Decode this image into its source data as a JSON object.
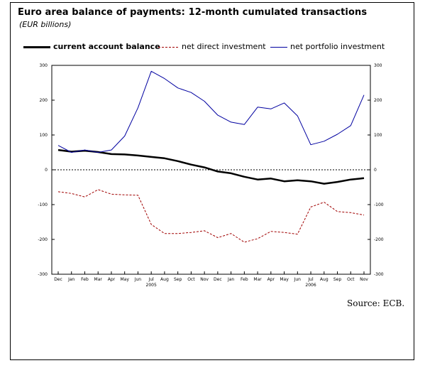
{
  "chart_data": {
    "type": "line",
    "title": "Euro area balance of payments: 12-month cumulated transactions",
    "subtitle": "(EUR billions)",
    "source": "Source: ECB.",
    "ylim": [
      -300,
      300
    ],
    "yticks": [
      "300",
      "200",
      "100",
      "0",
      "-100",
      "-200",
      "-300"
    ],
    "ytick_values": [
      300,
      200,
      100,
      0,
      -100,
      -200,
      -300
    ],
    "categories": [
      "Dec",
      "Jan",
      "Feb",
      "Mar",
      "Apr",
      "May",
      "Jun",
      "Jul",
      "Aug",
      "Sep",
      "Oct",
      "Nov",
      "Dec",
      "Jan",
      "Feb",
      "Mar",
      "Apr",
      "May",
      "Jun",
      "Jul",
      "Aug",
      "Sep",
      "Oct",
      "Nov"
    ],
    "year_labels": [
      {
        "label": "2005",
        "index": 7
      },
      {
        "label": "2006",
        "index": 19
      }
    ],
    "zero_line": "dotted",
    "grid": false,
    "legend_position": "top",
    "series": [
      {
        "name": "current account balance",
        "style": "solid-thick",
        "color": "#000000",
        "values": [
          57,
          52,
          55,
          51,
          45,
          44,
          41,
          37,
          33,
          25,
          15,
          7,
          -5,
          -10,
          -20,
          -28,
          -25,
          -33,
          -30,
          -33,
          -40,
          -35,
          -28,
          -24
        ]
      },
      {
        "name": "net direct investment",
        "style": "dashed",
        "color": "#a00000",
        "values": [
          -63,
          -68,
          -78,
          -57,
          -70,
          -72,
          -73,
          -157,
          -183,
          -183,
          -180,
          -175,
          -195,
          -183,
          -208,
          -198,
          -177,
          -180,
          -185,
          -107,
          -93,
          -120,
          -123,
          -130
        ]
      },
      {
        "name": "net portfolio investment",
        "style": "solid",
        "color": "#0000a0",
        "values": [
          70,
          50,
          57,
          50,
          57,
          97,
          178,
          283,
          262,
          235,
          222,
          197,
          157,
          137,
          130,
          180,
          175,
          192,
          155,
          72,
          82,
          102,
          127,
          215
        ]
      }
    ]
  }
}
